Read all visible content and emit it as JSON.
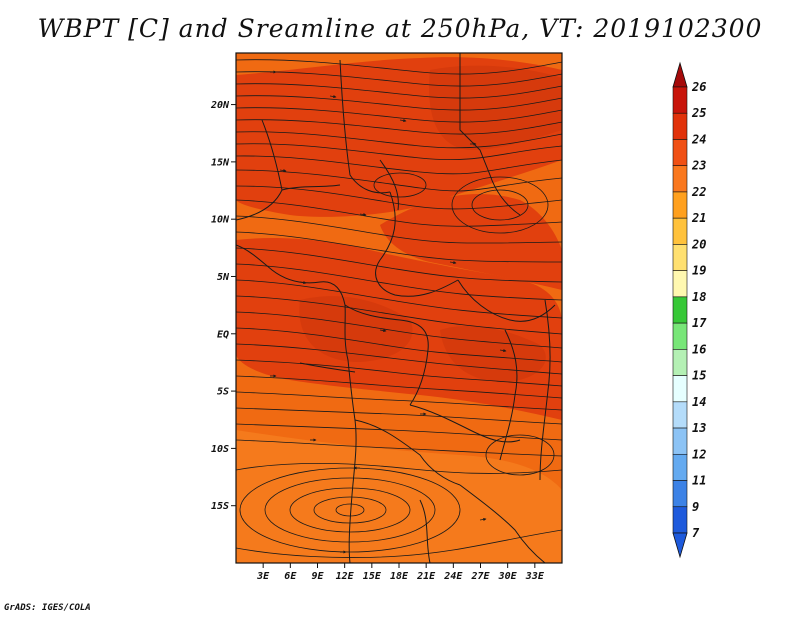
{
  "title": "WBPT [C] and Sreamline at 250hPa, VT: 2019102300",
  "credit": "GrADS: IGES/COLA",
  "map": {
    "lat_range": [
      -20,
      24.5
    ],
    "lon_range": [
      0,
      36
    ],
    "lat_ticks": [
      {
        "value": 20,
        "label": "20N"
      },
      {
        "value": 15,
        "label": "15N"
      },
      {
        "value": 10,
        "label": "10N"
      },
      {
        "value": 5,
        "label": "5N"
      },
      {
        "value": 0,
        "label": "EQ"
      },
      {
        "value": -5,
        "label": "5S"
      },
      {
        "value": -10,
        "label": "10S"
      },
      {
        "value": -15,
        "label": "15S"
      }
    ],
    "lon_ticks": [
      {
        "value": 3,
        "label": "3E"
      },
      {
        "value": 6,
        "label": "6E"
      },
      {
        "value": 9,
        "label": "9E"
      },
      {
        "value": 12,
        "label": "12E"
      },
      {
        "value": 15,
        "label": "15E"
      },
      {
        "value": 18,
        "label": "18E"
      },
      {
        "value": 21,
        "label": "21E"
      },
      {
        "value": 24,
        "label": "24E"
      },
      {
        "value": 27,
        "label": "27E"
      },
      {
        "value": 30,
        "label": "30E"
      },
      {
        "value": 33,
        "label": "33E"
      }
    ]
  },
  "colorbar": {
    "levels": [
      {
        "label": "26",
        "color": "#a50a0a"
      },
      {
        "label": "25",
        "color": "#c8140a"
      },
      {
        "label": "24",
        "color": "#e1320a"
      },
      {
        "label": "23",
        "color": "#f05014"
      },
      {
        "label": "22",
        "color": "#fa781e"
      },
      {
        "label": "21",
        "color": "#ffa01e"
      },
      {
        "label": "20",
        "color": "#ffc23c"
      },
      {
        "label": "19",
        "color": "#ffe070"
      },
      {
        "label": "18",
        "color": "#fff8b0"
      },
      {
        "label": "17",
        "color": "#37c837"
      },
      {
        "label": "16",
        "color": "#78e678"
      },
      {
        "label": "15",
        "color": "#b4f0b4"
      },
      {
        "label": "14",
        "color": "#e6ffff"
      },
      {
        "label": "13",
        "color": "#b4dcfa"
      },
      {
        "label": "12",
        "color": "#8cc3f5"
      },
      {
        "label": "11",
        "color": "#64aaf0"
      },
      {
        "label": "9",
        "color": "#3c82e6"
      },
      {
        "label": "7",
        "color": "#1e5adc"
      }
    ],
    "top_color": "#a50a0a",
    "bottom_color": "#1e5adc"
  },
  "colors": {
    "base_field": "#f06a12",
    "warm_field": "#e1400e",
    "hot_field": "#d63a0c",
    "line": "#1a1a1a"
  }
}
